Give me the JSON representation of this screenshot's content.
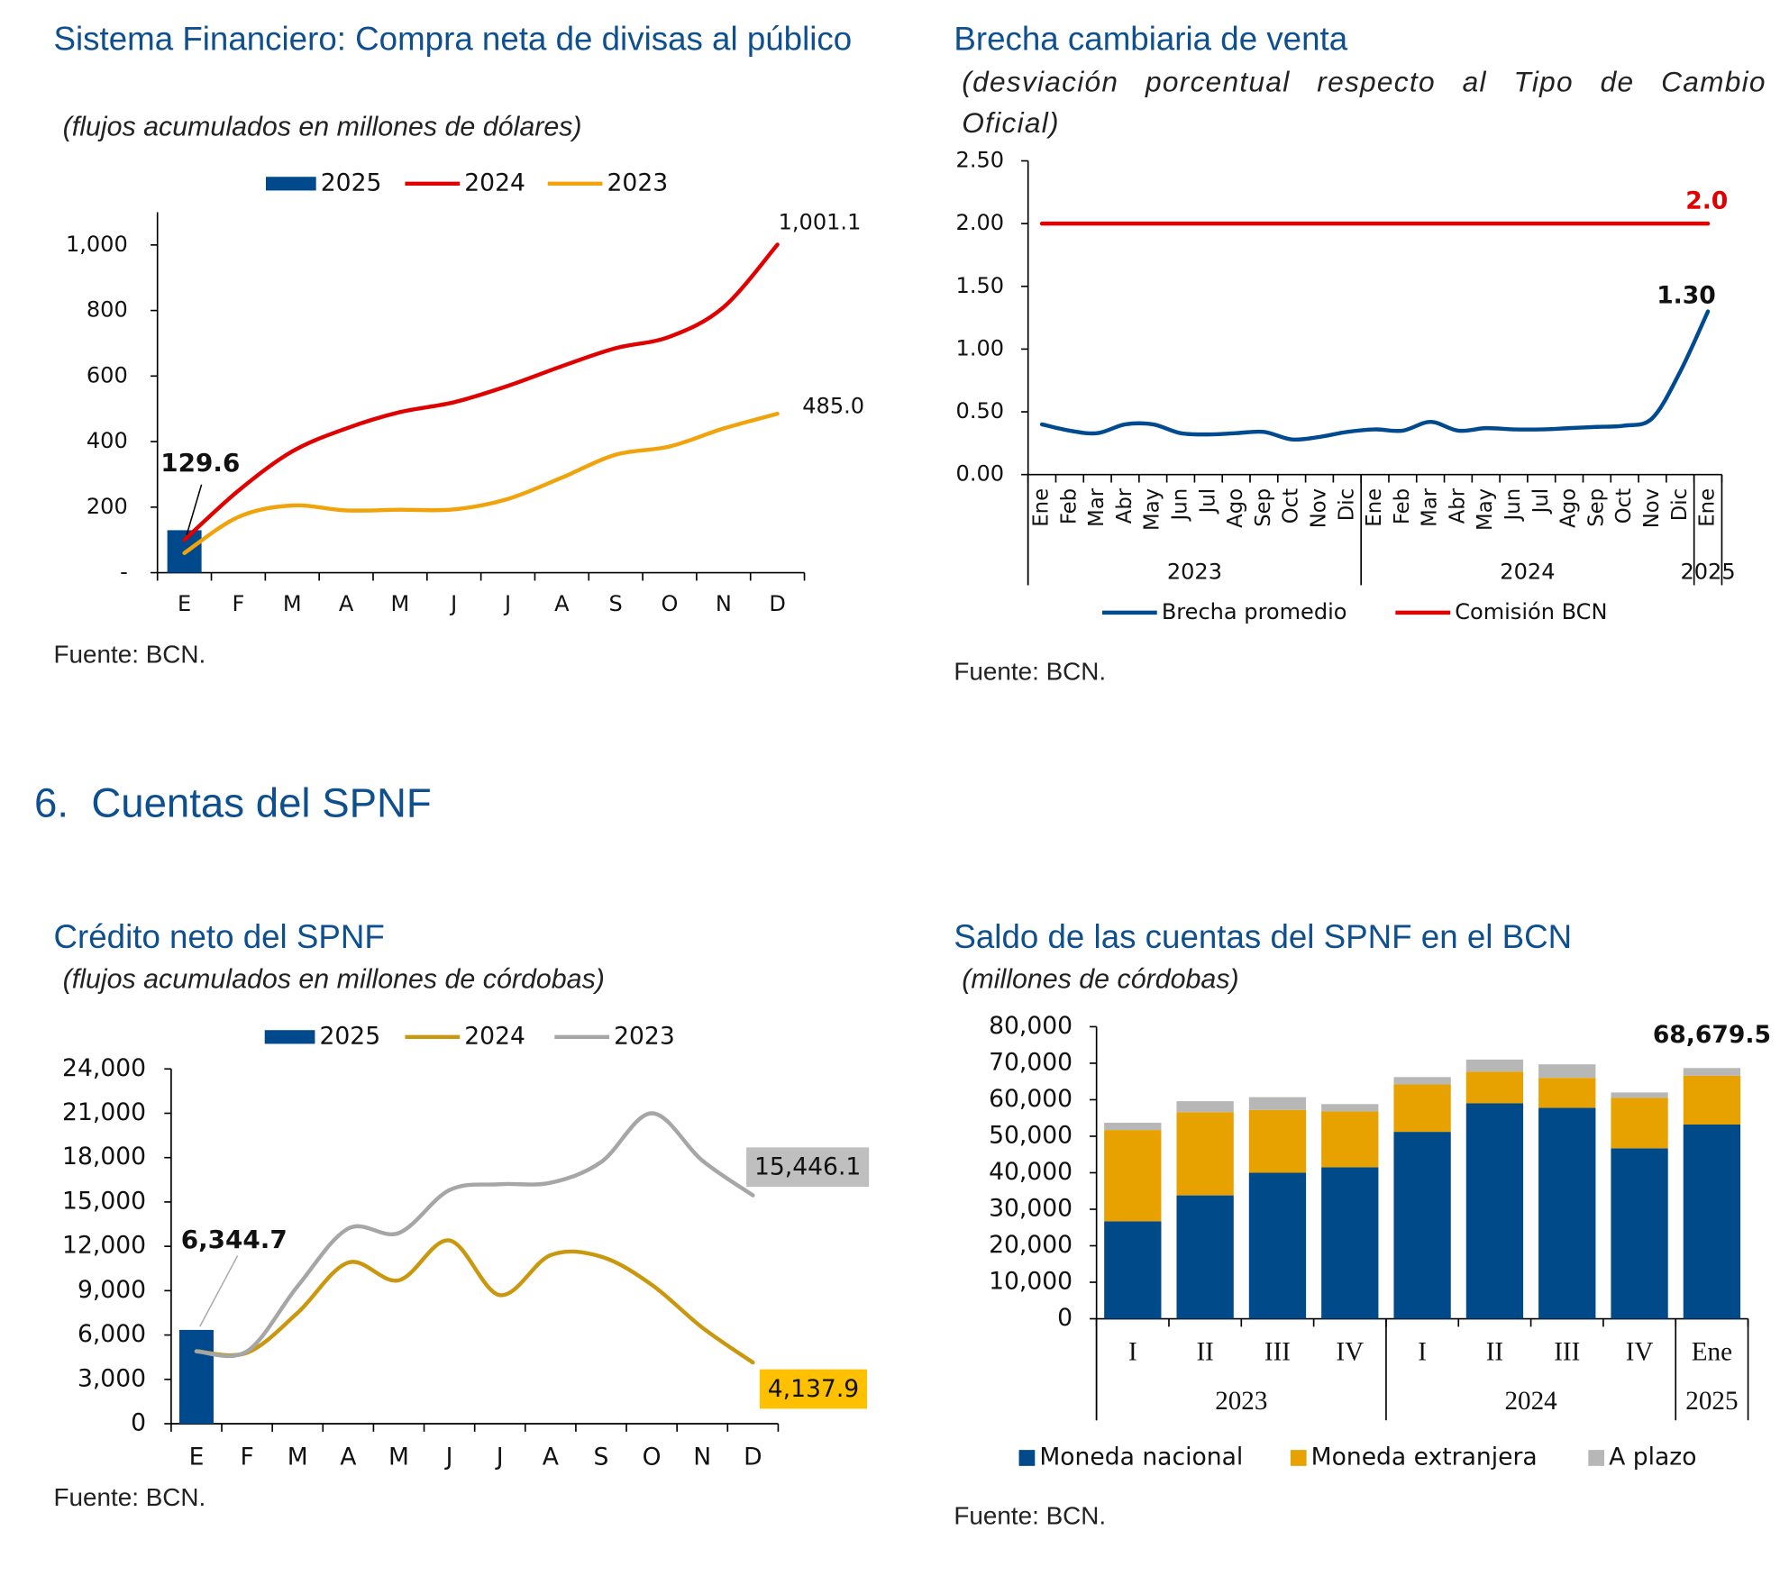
{
  "section_heading": "6.  Cuentas del SPNF",
  "chart_data": [
    {
      "type": "combo",
      "title": "Sistema Financiero: Compra neta de divisas al público",
      "subtitle": "(flujos acumulados en millones de dólares)",
      "source": "Fuente: BCN.",
      "categories": [
        "E",
        "F",
        "M",
        "A",
        "M",
        "J",
        "J",
        "A",
        "S",
        "O",
        "N",
        "D"
      ],
      "series": [
        {
          "name": "2025",
          "type": "bar",
          "color": "#00498c",
          "values": [
            129.6,
            null,
            null,
            null,
            null,
            null,
            null,
            null,
            null,
            null,
            null,
            null
          ],
          "value_labels": [
            "129.6",
            null,
            null,
            null,
            null,
            null,
            null,
            null,
            null,
            null,
            null,
            null
          ]
        },
        {
          "name": "2024",
          "type": "line",
          "color": "#e00000",
          "values": [
            100,
            250,
            370,
            440,
            490,
            520,
            570,
            630,
            685,
            720,
            810,
            1001.1
          ],
          "value_labels": [
            null,
            null,
            null,
            null,
            null,
            null,
            null,
            null,
            null,
            null,
            null,
            "1,001.1"
          ]
        },
        {
          "name": "2023",
          "type": "line",
          "color": "#f0a30a",
          "values": [
            60,
            170,
            205,
            190,
            192,
            193,
            225,
            290,
            360,
            385,
            440,
            485
          ],
          "value_labels": [
            null,
            null,
            null,
            null,
            null,
            null,
            null,
            null,
            null,
            null,
            null,
            "485.0"
          ]
        }
      ],
      "ylim": [
        0,
        1100
      ],
      "yticks": [
        {
          "value": 0,
          "label": "-"
        },
        200,
        400,
        600,
        800,
        {
          "value": 1000,
          "label": "1,000"
        }
      ],
      "legend": "top"
    },
    {
      "type": "line",
      "title": "Brecha cambiaria de venta",
      "subtitle": "(desviación porcentual respecto al Tipo de Cambio Oficial)",
      "source": "Fuente: BCN.",
      "categories": [
        "Ene",
        "Feb",
        "Mar",
        "Abr",
        "May",
        "Jun",
        "Jul",
        "Ago",
        "Sep",
        "Oct",
        "Nov",
        "Dic",
        "Ene",
        "Feb",
        "Mar",
        "Abr",
        "May",
        "Jun",
        "Jul",
        "Ago",
        "Sep",
        "Oct",
        "Nov",
        "Dic",
        "Ene"
      ],
      "groups": [
        {
          "label": "2023",
          "size": 12
        },
        {
          "label": "2024",
          "size": 12
        },
        {
          "label": "2025",
          "size": 1
        }
      ],
      "series": [
        {
          "name": "Brecha promedio",
          "type": "line",
          "color": "#004a8f",
          "values": [
            0.4,
            0.35,
            0.33,
            0.4,
            0.4,
            0.33,
            0.32,
            0.33,
            0.34,
            0.28,
            0.3,
            0.34,
            0.36,
            0.35,
            0.42,
            0.35,
            0.37,
            0.36,
            0.36,
            0.37,
            0.38,
            0.39,
            0.45,
            0.82,
            1.3
          ],
          "value_labels": [
            null,
            null,
            null,
            null,
            null,
            null,
            null,
            null,
            null,
            null,
            null,
            null,
            null,
            null,
            null,
            null,
            null,
            null,
            null,
            null,
            null,
            null,
            null,
            null,
            "1.30"
          ]
        },
        {
          "name": "Comisión BCN",
          "type": "line",
          "color": "#e00000",
          "values": [
            2.0,
            2.0,
            2.0,
            2.0,
            2.0,
            2.0,
            2.0,
            2.0,
            2.0,
            2.0,
            2.0,
            2.0,
            2.0,
            2.0,
            2.0,
            2.0,
            2.0,
            2.0,
            2.0,
            2.0,
            2.0,
            2.0,
            2.0,
            2.0,
            2.0
          ],
          "value_labels": [
            null,
            null,
            null,
            null,
            null,
            null,
            null,
            null,
            null,
            null,
            null,
            null,
            null,
            null,
            null,
            null,
            null,
            null,
            null,
            null,
            null,
            null,
            null,
            null,
            "2.0"
          ]
        }
      ],
      "ylim": [
        0,
        2.5
      ],
      "yticks": [
        {
          "value": 0,
          "label": "0.00"
        },
        {
          "value": 0.5,
          "label": "0.50"
        },
        {
          "value": 1,
          "label": "1.00"
        },
        {
          "value": 1.5,
          "label": "1.50"
        },
        {
          "value": 2,
          "label": "2.00"
        },
        {
          "value": 2.5,
          "label": "2.50"
        }
      ],
      "legend": "bottom"
    },
    {
      "type": "combo",
      "title": "Crédito neto del SPNF",
      "subtitle": "(flujos acumulados en millones de córdobas)",
      "source": "Fuente: BCN.",
      "categories": [
        "E",
        "F",
        "M",
        "A",
        "M",
        "J",
        "J",
        "A",
        "S",
        "O",
        "N",
        "D"
      ],
      "series": [
        {
          "name": "2025",
          "type": "bar",
          "color": "#00498c",
          "values": [
            6344.7,
            null,
            null,
            null,
            null,
            null,
            null,
            null,
            null,
            null,
            null,
            null
          ],
          "value_labels": [
            "6,344.7",
            null,
            null,
            null,
            null,
            null,
            null,
            null,
            null,
            null,
            null,
            null
          ]
        },
        {
          "name": "2024",
          "type": "line",
          "color": "#c9980f",
          "values": [
            4900,
            4800,
            7500,
            10900,
            9700,
            12400,
            8700,
            11400,
            11300,
            9400,
            6500,
            4137.9
          ],
          "value_labels": [
            null,
            null,
            null,
            null,
            null,
            null,
            null,
            null,
            null,
            null,
            null,
            "4,137.9"
          ]
        },
        {
          "name": "2023",
          "type": "line",
          "color": "#a6a6a6",
          "values": [
            4900,
            4900,
            9300,
            13200,
            12900,
            15800,
            16200,
            16300,
            17700,
            21000,
            17800,
            15446.1
          ],
          "value_labels": [
            null,
            null,
            null,
            null,
            null,
            null,
            null,
            null,
            null,
            null,
            null,
            "15,446.1"
          ]
        }
      ],
      "ylim": [
        0,
        24000
      ],
      "yticks": [
        0,
        {
          "value": 3000,
          "label": "3,000"
        },
        {
          "value": 6000,
          "label": "6,000"
        },
        {
          "value": 9000,
          "label": "9,000"
        },
        {
          "value": 12000,
          "label": "12,000"
        },
        {
          "value": 15000,
          "label": "15,000"
        },
        {
          "value": 18000,
          "label": "18,000"
        },
        {
          "value": 21000,
          "label": "21,000"
        },
        {
          "value": 24000,
          "label": "24,000"
        }
      ],
      "legend": "top"
    },
    {
      "type": "stacked",
      "title": "Saldo de las cuentas del SPNF en el BCN",
      "subtitle": "(millones de córdobas)",
      "source": "Fuente: BCN.",
      "categories": [
        "I",
        "II",
        "III",
        "IV",
        "I",
        "II",
        "III",
        "IV",
        "Ene"
      ],
      "groups": [
        {
          "label": "2023",
          "size": 4
        },
        {
          "label": "2024",
          "size": 4
        },
        {
          "label": "2025",
          "size": 1
        }
      ],
      "series": [
        {
          "name": "Moneda nacional",
          "color": "#004a8a",
          "values": [
            26700,
            33800,
            40000,
            41500,
            51200,
            59000,
            57800,
            46700,
            53200
          ]
        },
        {
          "name": "Moneda extranjera",
          "color": "#e8a200",
          "values": [
            25000,
            22800,
            17200,
            15300,
            13000,
            8700,
            8200,
            13800,
            13400
          ]
        },
        {
          "name": "A plazo",
          "color": "#b7b7b7",
          "values": [
            2000,
            3000,
            3500,
            2000,
            2000,
            3300,
            3700,
            1500,
            2079.5
          ]
        }
      ],
      "total_label": "68,679.5",
      "ylim": [
        0,
        80000
      ],
      "yticks": [
        0,
        {
          "value": 10000,
          "label": "10,000"
        },
        {
          "value": 20000,
          "label": "20,000"
        },
        {
          "value": 30000,
          "label": "30,000"
        },
        {
          "value": 40000,
          "label": "40,000"
        },
        {
          "value": 50000,
          "label": "50,000"
        },
        {
          "value": 60000,
          "label": "60,000"
        },
        {
          "value": 70000,
          "label": "70,000"
        },
        {
          "value": 80000,
          "label": "80,000"
        }
      ],
      "legend": "bottom"
    }
  ]
}
